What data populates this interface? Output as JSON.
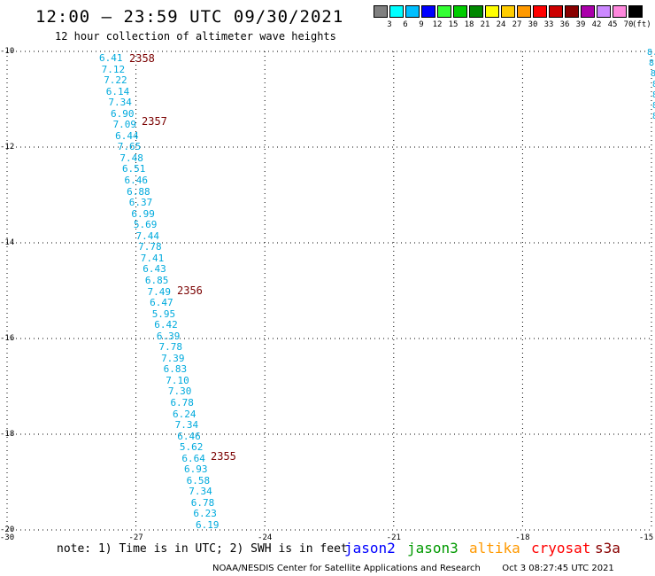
{
  "title": "12:00 — 23:59 UTC 09/30/2021",
  "subtitle": "12 hour collection of altimeter wave heights",
  "color_scale": {
    "swatches": [
      "#808080",
      "#00ffff",
      "#00bfff",
      "#0000ff",
      "#33ff33",
      "#00cc00",
      "#008800",
      "#ffff00",
      "#ffcc00",
      "#ff9900",
      "#ff0000",
      "#cc0000",
      "#880000",
      "#aa00aa",
      "#cc88ff",
      "#ff88dd",
      "#000000"
    ],
    "labels": [
      "3",
      "6",
      "9",
      "12",
      "15",
      "18",
      "21",
      "24",
      "27",
      "30",
      "33",
      "36",
      "39",
      "42",
      "45",
      "70"
    ],
    "unit": "(ft)"
  },
  "lat_labels": [
    "-10",
    "-12",
    "-14",
    "-16",
    "-18",
    "-20"
  ],
  "lon_labels": [
    "-30",
    "-27",
    "-24",
    "-21",
    "-18",
    "-15"
  ],
  "observations": [
    "6.41",
    "7.12",
    "7.22",
    "6.14",
    "7.34",
    "6.90",
    "7.09",
    "6.44",
    "7.65",
    "7.48",
    "6.51",
    "6.46",
    "6.88",
    "6.37",
    "6.99",
    "5.69",
    "7.44",
    "7.78",
    "7.41",
    "6.43",
    "6.85",
    "7.49",
    "6.47",
    "5.95",
    "6.42",
    "6.39",
    "7.78",
    "7.39",
    "6.83",
    "7.10",
    "7.30",
    "6.78",
    "6.24",
    "7.34",
    "6.46",
    "5.62",
    "6.64",
    "6.93",
    "6.58",
    "7.34",
    "6.78",
    "6.23",
    "6.19"
  ],
  "edge_observations": [
    "8.",
    "8.",
    "8",
    "8",
    "8",
    "8",
    "8"
  ],
  "times": [
    "2358",
    "2357",
    "2356",
    "2355"
  ],
  "note": "note: 1) Time is in UTC; 2) SWH is in feet",
  "satellites": [
    {
      "name": "jason2",
      "color": "#0000ff"
    },
    {
      "name": "jason3",
      "color": "#009900"
    },
    {
      "name": "altika",
      "color": "#ff9900"
    },
    {
      "name": "cryosat",
      "color": "#ff0000"
    },
    {
      "name": "s3a",
      "color": "#880000"
    }
  ],
  "credit": "NOAA/NESDIS Center for Satellite Applications and Research",
  "timestamp": "Oct  3 08:27:45 UTC 2021"
}
